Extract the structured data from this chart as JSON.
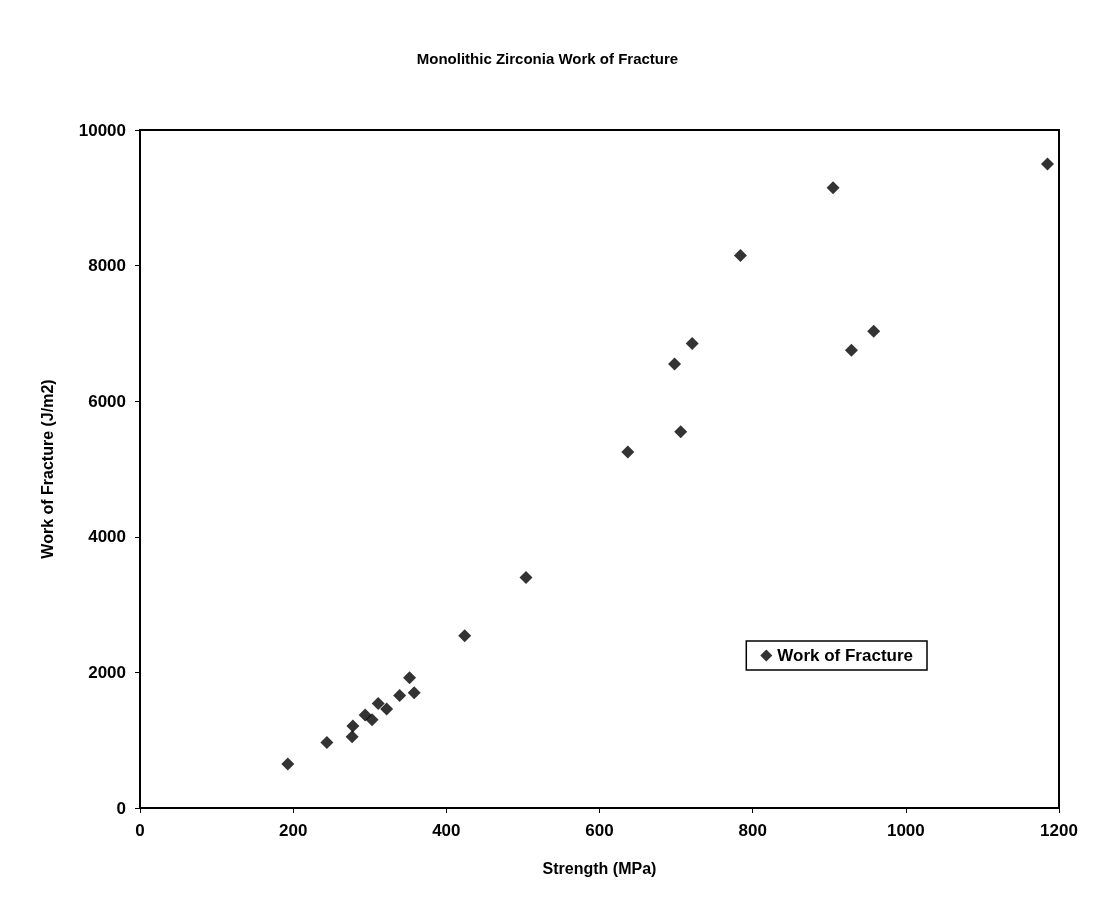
{
  "chart_data": {
    "type": "scatter",
    "title": "Monolithic Zirconia Work of Fracture",
    "xlabel": "Strength (MPa)",
    "ylabel": "Work of Fracture (J/m2)",
    "x": [
      193,
      244,
      277,
      278,
      294,
      303,
      311,
      322,
      339,
      352,
      358,
      424,
      504,
      637,
      698,
      706,
      721,
      784,
      905,
      929,
      958,
      1185
    ],
    "series": [
      {
        "name": "Work of Fracture",
        "color": "#000000",
        "values": [
          650,
          965,
          1050,
          1210,
          1370,
          1300,
          1540,
          1460,
          1660,
          1920,
          1700,
          2540,
          3400,
          5250,
          6550,
          5550,
          6850,
          8150,
          9150,
          6750,
          7030,
          9500
        ]
      }
    ],
    "xlim": [
      0,
      1200
    ],
    "xticks": [
      0,
      200,
      400,
      600,
      800,
      1000,
      1200
    ],
    "ylim": [
      0,
      10000
    ],
    "yticks": [
      0,
      2000,
      4000,
      6000,
      8000,
      10000
    ],
    "grid": false,
    "legend": "bottom right",
    "marker": "diamond"
  }
}
